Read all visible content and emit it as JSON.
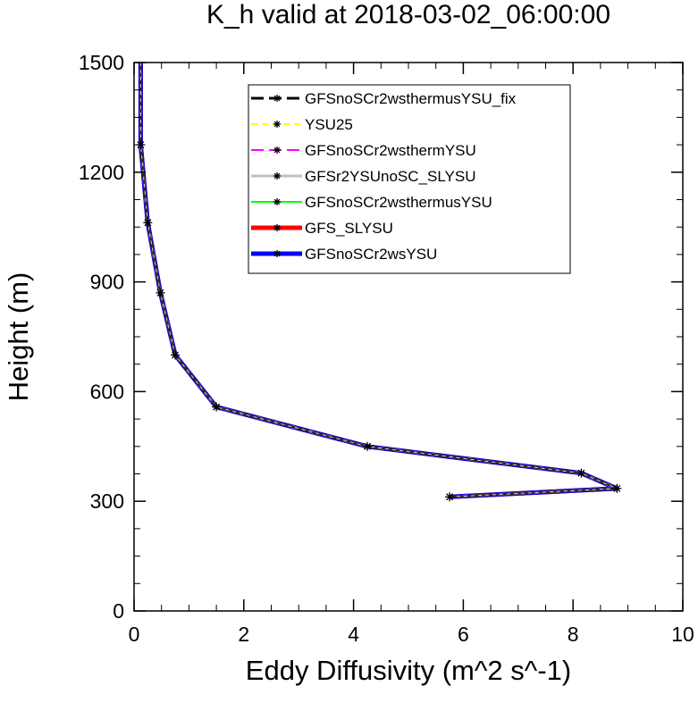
{
  "chart_data": {
    "type": "line",
    "title": "K_h valid at 2018-03-02_06:00:00",
    "xlabel": "Eddy Diffusivity (m^2 s^-1)",
    "ylabel": "Height (m)",
    "xlim": [
      0,
      10
    ],
    "ylim": [
      0,
      1500
    ],
    "xticks": [
      "0",
      "2",
      "4",
      "6",
      "8",
      "10"
    ],
    "yticks": [
      "0",
      "300",
      "600",
      "900",
      "1200",
      "1500"
    ],
    "grid": false,
    "legend_position": "top-right",
    "x": [
      5.75,
      8.8,
      8.15,
      4.25,
      1.5,
      0.75,
      0.48,
      0.25,
      0.12,
      0.12
    ],
    "y": [
      312,
      335,
      377,
      450,
      558,
      700,
      870,
      1062,
      1275,
      1500
    ],
    "series": [
      {
        "name": "GFSnoSCr2wsthermusYSU_fix",
        "color": "#000000",
        "dash": "long-dash",
        "width": 3
      },
      {
        "name": "YSU25",
        "color": "#ffff00",
        "dash": "dash",
        "width": 2
      },
      {
        "name": "GFSnoSCr2wsthermYSU",
        "color": "#ff00ff",
        "dash": "long-dash",
        "width": 2
      },
      {
        "name": "GFSr2YSUnoSC_SLYSU",
        "color": "#c0c0c0",
        "dash": "solid",
        "width": 3
      },
      {
        "name": "GFSnoSCr2wsthermusYSU",
        "color": "#00ff00",
        "dash": "solid",
        "width": 2
      },
      {
        "name": "GFS_SLYSU",
        "color": "#ff0000",
        "dash": "solid",
        "width": 5
      },
      {
        "name": "GFSnoSCr2wsYSU",
        "color": "#0000ff",
        "dash": "solid",
        "width": 5
      }
    ]
  }
}
